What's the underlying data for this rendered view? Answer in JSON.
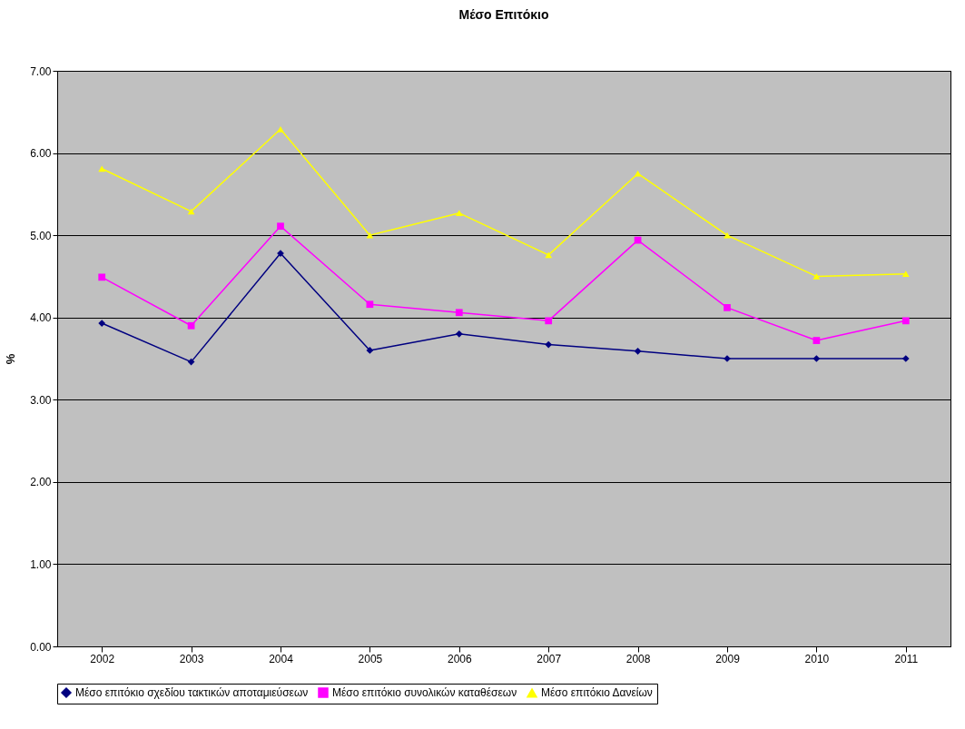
{
  "chart_data": {
    "type": "line",
    "title": "Μέσο Επιτόκιο",
    "ylabel": "%",
    "categories": [
      "2002",
      "2003",
      "2004",
      "2005",
      "2006",
      "2007",
      "2008",
      "2009",
      "2010",
      "2011"
    ],
    "series": [
      {
        "name": "Μέσο επιτόκιο σχεδίου τακτικών αποταμιεύσεων",
        "color": "#000080",
        "marker": "diamond",
        "values": [
          3.93,
          3.46,
          4.78,
          3.6,
          3.8,
          3.67,
          3.59,
          3.5,
          3.5,
          3.5
        ]
      },
      {
        "name": "Μέσο επιτόκιο συνολικών καταθέσεων",
        "color": "#ff00ff",
        "marker": "square",
        "values": [
          4.49,
          3.9,
          5.11,
          4.16,
          4.06,
          3.96,
          4.94,
          4.12,
          3.72,
          3.96
        ]
      },
      {
        "name": "Μέσο επιτόκιο Δανείων",
        "color": "#ffff00",
        "marker": "triangle",
        "values": [
          5.81,
          5.29,
          6.29,
          5.0,
          5.27,
          4.76,
          5.75,
          5.0,
          4.5,
          4.53
        ]
      }
    ],
    "ylim": [
      0,
      7
    ],
    "yticks": [
      {
        "value": 0,
        "label": "0.00"
      },
      {
        "value": 1,
        "label": "1.00"
      },
      {
        "value": 2,
        "label": "2.00"
      },
      {
        "value": 3,
        "label": "3.00"
      },
      {
        "value": 4,
        "label": "4.00"
      },
      {
        "value": 5,
        "label": "5.00"
      },
      {
        "value": 6,
        "label": "6.00"
      },
      {
        "value": 7,
        "label": "7.00"
      }
    ],
    "grid": "y",
    "legend": "bottom",
    "line_style": "solid"
  }
}
